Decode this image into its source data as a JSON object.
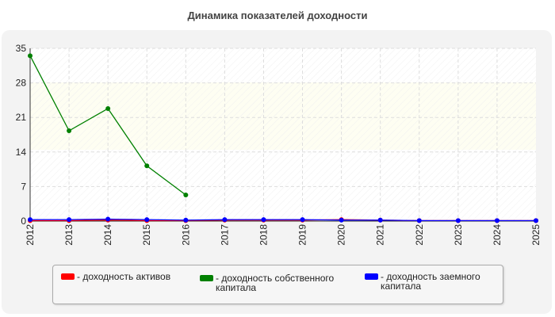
{
  "chart_data": {
    "type": "line",
    "title": "Динамика показателей доходности",
    "x": [
      "2012",
      "2013",
      "2014",
      "2015",
      "2016",
      "2017",
      "2018",
      "2019",
      "2020",
      "2021",
      "2022",
      "2023",
      "2024",
      "2025"
    ],
    "ylim": [
      0,
      35
    ],
    "yticks": [
      0,
      7,
      14,
      21,
      28,
      35
    ],
    "grid": true,
    "legend_position": "bottom",
    "series": [
      {
        "name": "- доходность активов",
        "color": "#ff0000",
        "values": [
          0.1,
          0.1,
          0.2,
          0.1,
          0.1,
          0.2,
          0.2,
          0.2,
          0.3,
          0.2,
          0.1,
          0.1,
          0.1,
          0.1
        ]
      },
      {
        "name": "- доходность собственного капитала",
        "color": "#008000",
        "values": [
          33.5,
          18.3,
          22.8,
          11.2,
          5.3,
          null,
          null,
          null,
          null,
          null,
          null,
          null,
          null,
          null
        ]
      },
      {
        "name": "- доходность заемного капитала",
        "color": "#0000ff",
        "values": [
          0.3,
          0.3,
          0.4,
          0.3,
          0.2,
          0.3,
          0.3,
          0.3,
          0.2,
          0.2,
          0.1,
          0.1,
          0.1,
          0.1
        ]
      }
    ]
  }
}
